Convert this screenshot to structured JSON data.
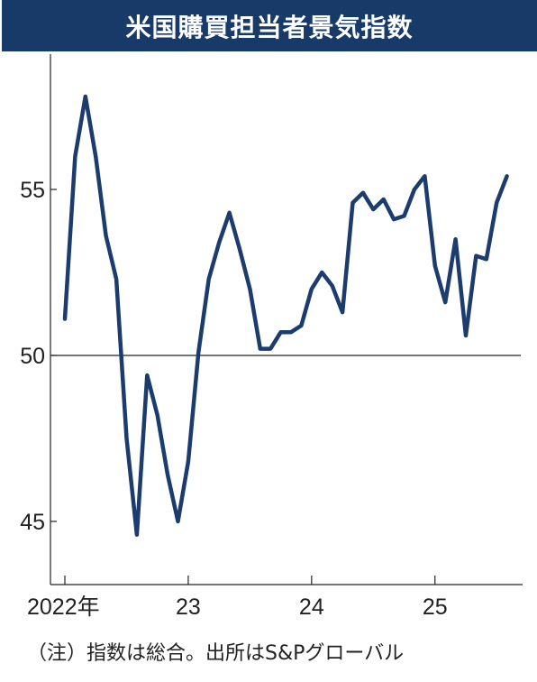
{
  "colors": {
    "title_bg": "#173a68",
    "line": "#1c3c6e",
    "axis": "#222222"
  },
  "title": "米国購買担当者景気指数",
  "note": "（注）指数は総合。出所はS&Pグローバル",
  "chart_data": {
    "type": "line",
    "title": "米国購買担当者景気指数",
    "xlabel": "",
    "ylabel": "",
    "ylim": [
      43.2,
      58.8
    ],
    "yticks": [
      45,
      50,
      55
    ],
    "reference_line": 50,
    "xticks": [
      {
        "x": 0,
        "label": "2022年"
      },
      {
        "x": 12,
        "label": "23"
      },
      {
        "x": 24,
        "label": "24"
      },
      {
        "x": 36,
        "label": "25"
      }
    ],
    "grid": false,
    "series": [
      {
        "values": [
          51.1,
          56.0,
          57.8,
          56.0,
          53.6,
          52.3,
          47.5,
          44.6,
          49.4,
          48.2,
          46.4,
          45.0,
          46.8,
          50.1,
          52.3,
          53.4,
          54.3,
          53.2,
          52.0,
          50.2,
          50.2,
          50.7,
          50.7,
          50.9,
          52.0,
          52.5,
          52.1,
          51.3,
          54.6,
          54.9,
          54.4,
          54.7,
          54.1,
          54.2,
          55.0,
          55.4,
          52.7,
          51.6,
          53.5,
          50.6,
          53.0,
          52.9,
          54.6,
          55.4
        ]
      }
    ]
  }
}
